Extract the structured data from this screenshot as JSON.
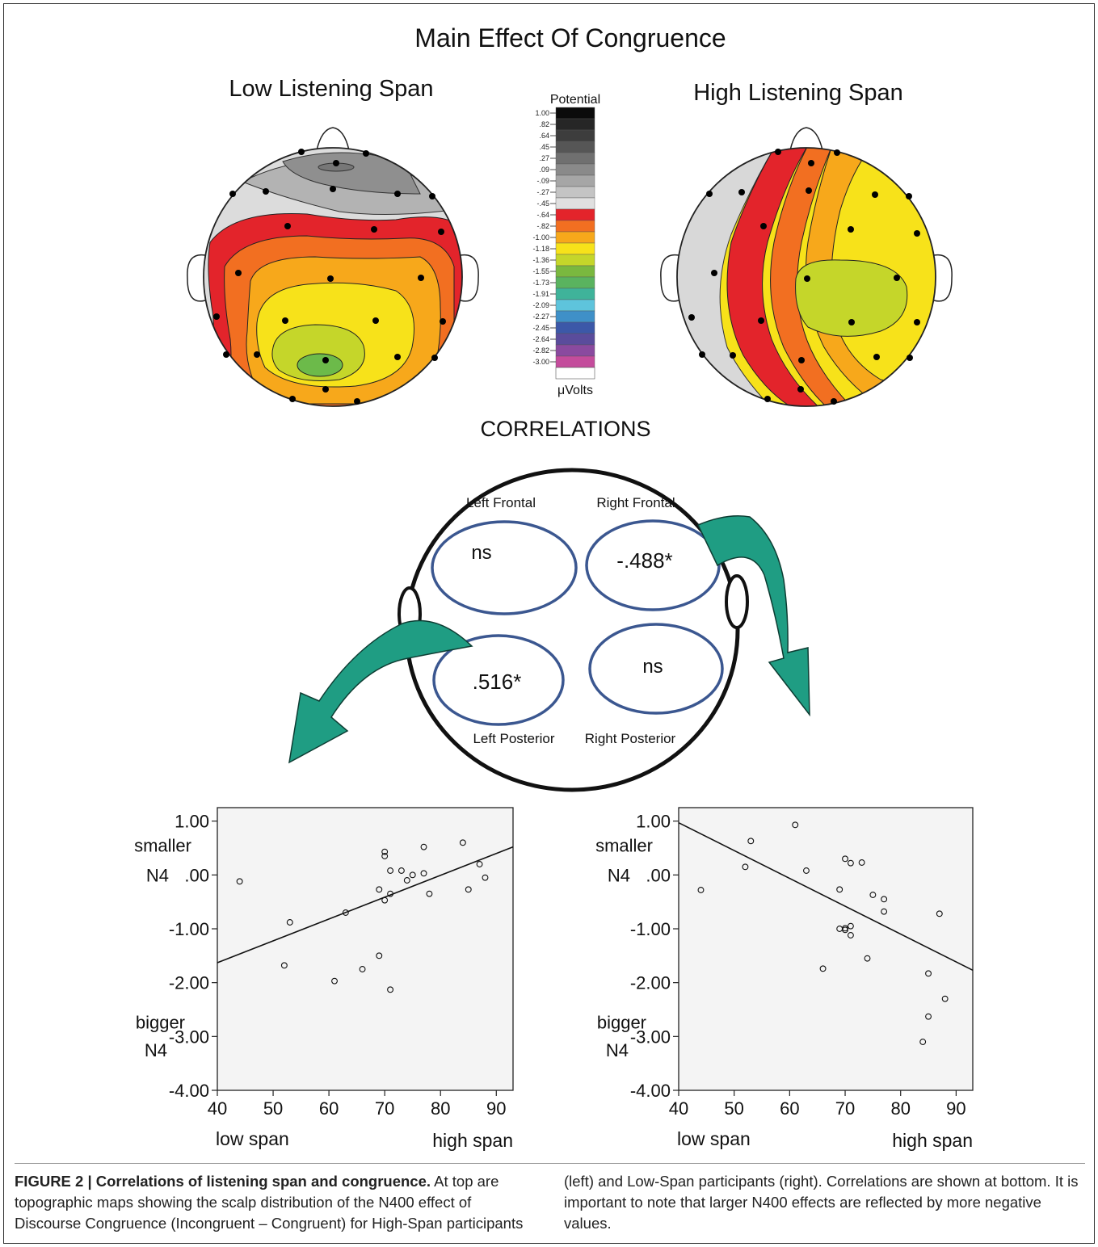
{
  "top": {
    "title": "Main Effect Of Congruence",
    "low_map_title": "Low Listening Span",
    "high_map_title": "High Listening Span"
  },
  "colorbar": {
    "title": "Potential",
    "unit": "μVolts",
    "ticks": [
      "1.00",
      ".82",
      ".64",
      ".45",
      ".27",
      ".09",
      "-.09",
      "-.27",
      "-.45",
      "-.64",
      "-.82",
      "-1.00",
      "-1.18",
      "-1.36",
      "-1.55",
      "-1.73",
      "-1.91",
      "-2.09",
      "-2.27",
      "-2.45",
      "-2.64",
      "-2.82",
      "-3.00"
    ],
    "colors": [
      "#0b0b0b",
      "#262626",
      "#3d3d3d",
      "#565656",
      "#707070",
      "#8a8a8a",
      "#a6a6a6",
      "#c4c4c4",
      "#e0e0e0",
      "#e3242b",
      "#f26f21",
      "#f7a81b",
      "#f7e21a",
      "#c5d62a",
      "#7ab83f",
      "#5ab35f",
      "#3fb39a",
      "#5ec4dc",
      "#3f90c8",
      "#3c58a8",
      "#5a4c9c",
      "#8a4a9f",
      "#c44c9c"
    ]
  },
  "correlations": {
    "title": "CORRELATIONS",
    "left_frontal_label": "Left Frontal",
    "right_frontal_label": "Right Frontal",
    "left_posterior_label": "Left Posterior",
    "right_posterior_label": "Right Posterior",
    "left_frontal_value": "ns",
    "right_frontal_value": "-.488*",
    "left_posterior_value": ".516*",
    "right_posterior_value": "ns"
  },
  "chart_data": [
    {
      "type": "scatter",
      "xlim": [
        40,
        93
      ],
      "ylim": [
        -4.0,
        1.25
      ],
      "x_ticks": [
        "40",
        "50",
        "60",
        "70",
        "80",
        "90"
      ],
      "y_ticks": [
        "1.00",
        ".00",
        "-1.00",
        "-2.00",
        "-3.00",
        "-4.00"
      ],
      "top_annotation": "smaller\nN4",
      "bottom_annotation": "bigger\nN4",
      "x_low_label": "low span",
      "x_high_label": "high span",
      "fit_line": [
        [
          40,
          -1.63
        ],
        [
          93,
          0.52
        ]
      ],
      "points": [
        [
          44,
          -0.12
        ],
        [
          52,
          -1.68
        ],
        [
          53,
          -0.88
        ],
        [
          61,
          -1.97
        ],
        [
          63,
          -0.7
        ],
        [
          66,
          -1.75
        ],
        [
          69,
          -1.5
        ],
        [
          69,
          -0.27
        ],
        [
          70,
          0.43
        ],
        [
          70,
          0.35
        ],
        [
          70,
          -0.47
        ],
        [
          71,
          0.08
        ],
        [
          71,
          -0.35
        ],
        [
          71,
          -2.13
        ],
        [
          73,
          0.08
        ],
        [
          74,
          -0.1
        ],
        [
          75,
          0.0
        ],
        [
          77,
          0.52
        ],
        [
          77,
          0.03
        ],
        [
          78,
          -0.35
        ],
        [
          84,
          0.6
        ],
        [
          85,
          -0.27
        ],
        [
          87,
          0.2
        ],
        [
          88,
          -0.05
        ]
      ]
    },
    {
      "type": "scatter",
      "xlim": [
        40,
        93
      ],
      "ylim": [
        -4.0,
        1.25
      ],
      "x_ticks": [
        "40",
        "50",
        "60",
        "70",
        "80",
        "90"
      ],
      "y_ticks": [
        "1.00",
        ".00",
        "-1.00",
        "-2.00",
        "-3.00",
        "-4.00"
      ],
      "top_annotation": "smaller\nN4",
      "bottom_annotation": "bigger\nN4",
      "x_low_label": "low span",
      "x_high_label": "high span",
      "fit_line": [
        [
          40,
          0.97
        ],
        [
          93,
          -1.77
        ]
      ],
      "points": [
        [
          44,
          -0.28
        ],
        [
          52,
          0.15
        ],
        [
          53,
          0.63
        ],
        [
          61,
          0.93
        ],
        [
          63,
          0.08
        ],
        [
          66,
          -1.74
        ],
        [
          69,
          -0.27
        ],
        [
          69,
          -1.0
        ],
        [
          70,
          -0.99
        ],
        [
          70,
          -1.02
        ],
        [
          70,
          0.3
        ],
        [
          71,
          0.22
        ],
        [
          71,
          -0.95
        ],
        [
          71,
          -1.12
        ],
        [
          73,
          0.23
        ],
        [
          74,
          -1.55
        ],
        [
          75,
          -0.37
        ],
        [
          77,
          -0.45
        ],
        [
          77,
          -0.68
        ],
        [
          84,
          -3.1
        ],
        [
          85,
          -1.83
        ],
        [
          85,
          -2.63
        ],
        [
          87,
          -0.72
        ],
        [
          88,
          -2.3
        ]
      ]
    }
  ],
  "caption": {
    "label": "FIGURE 2 | Correlations of listening span and congruence.",
    "text_left": "At top are topographic maps showing the scalp distribution of the N400 effect of Discourse Congruence (Incongruent – Congruent) for High-Span participants",
    "text_right": "(left) and Low-Span participants (right). Correlations are shown at bottom. It is important to note that larger N400 effects are reflected by more negative values."
  }
}
